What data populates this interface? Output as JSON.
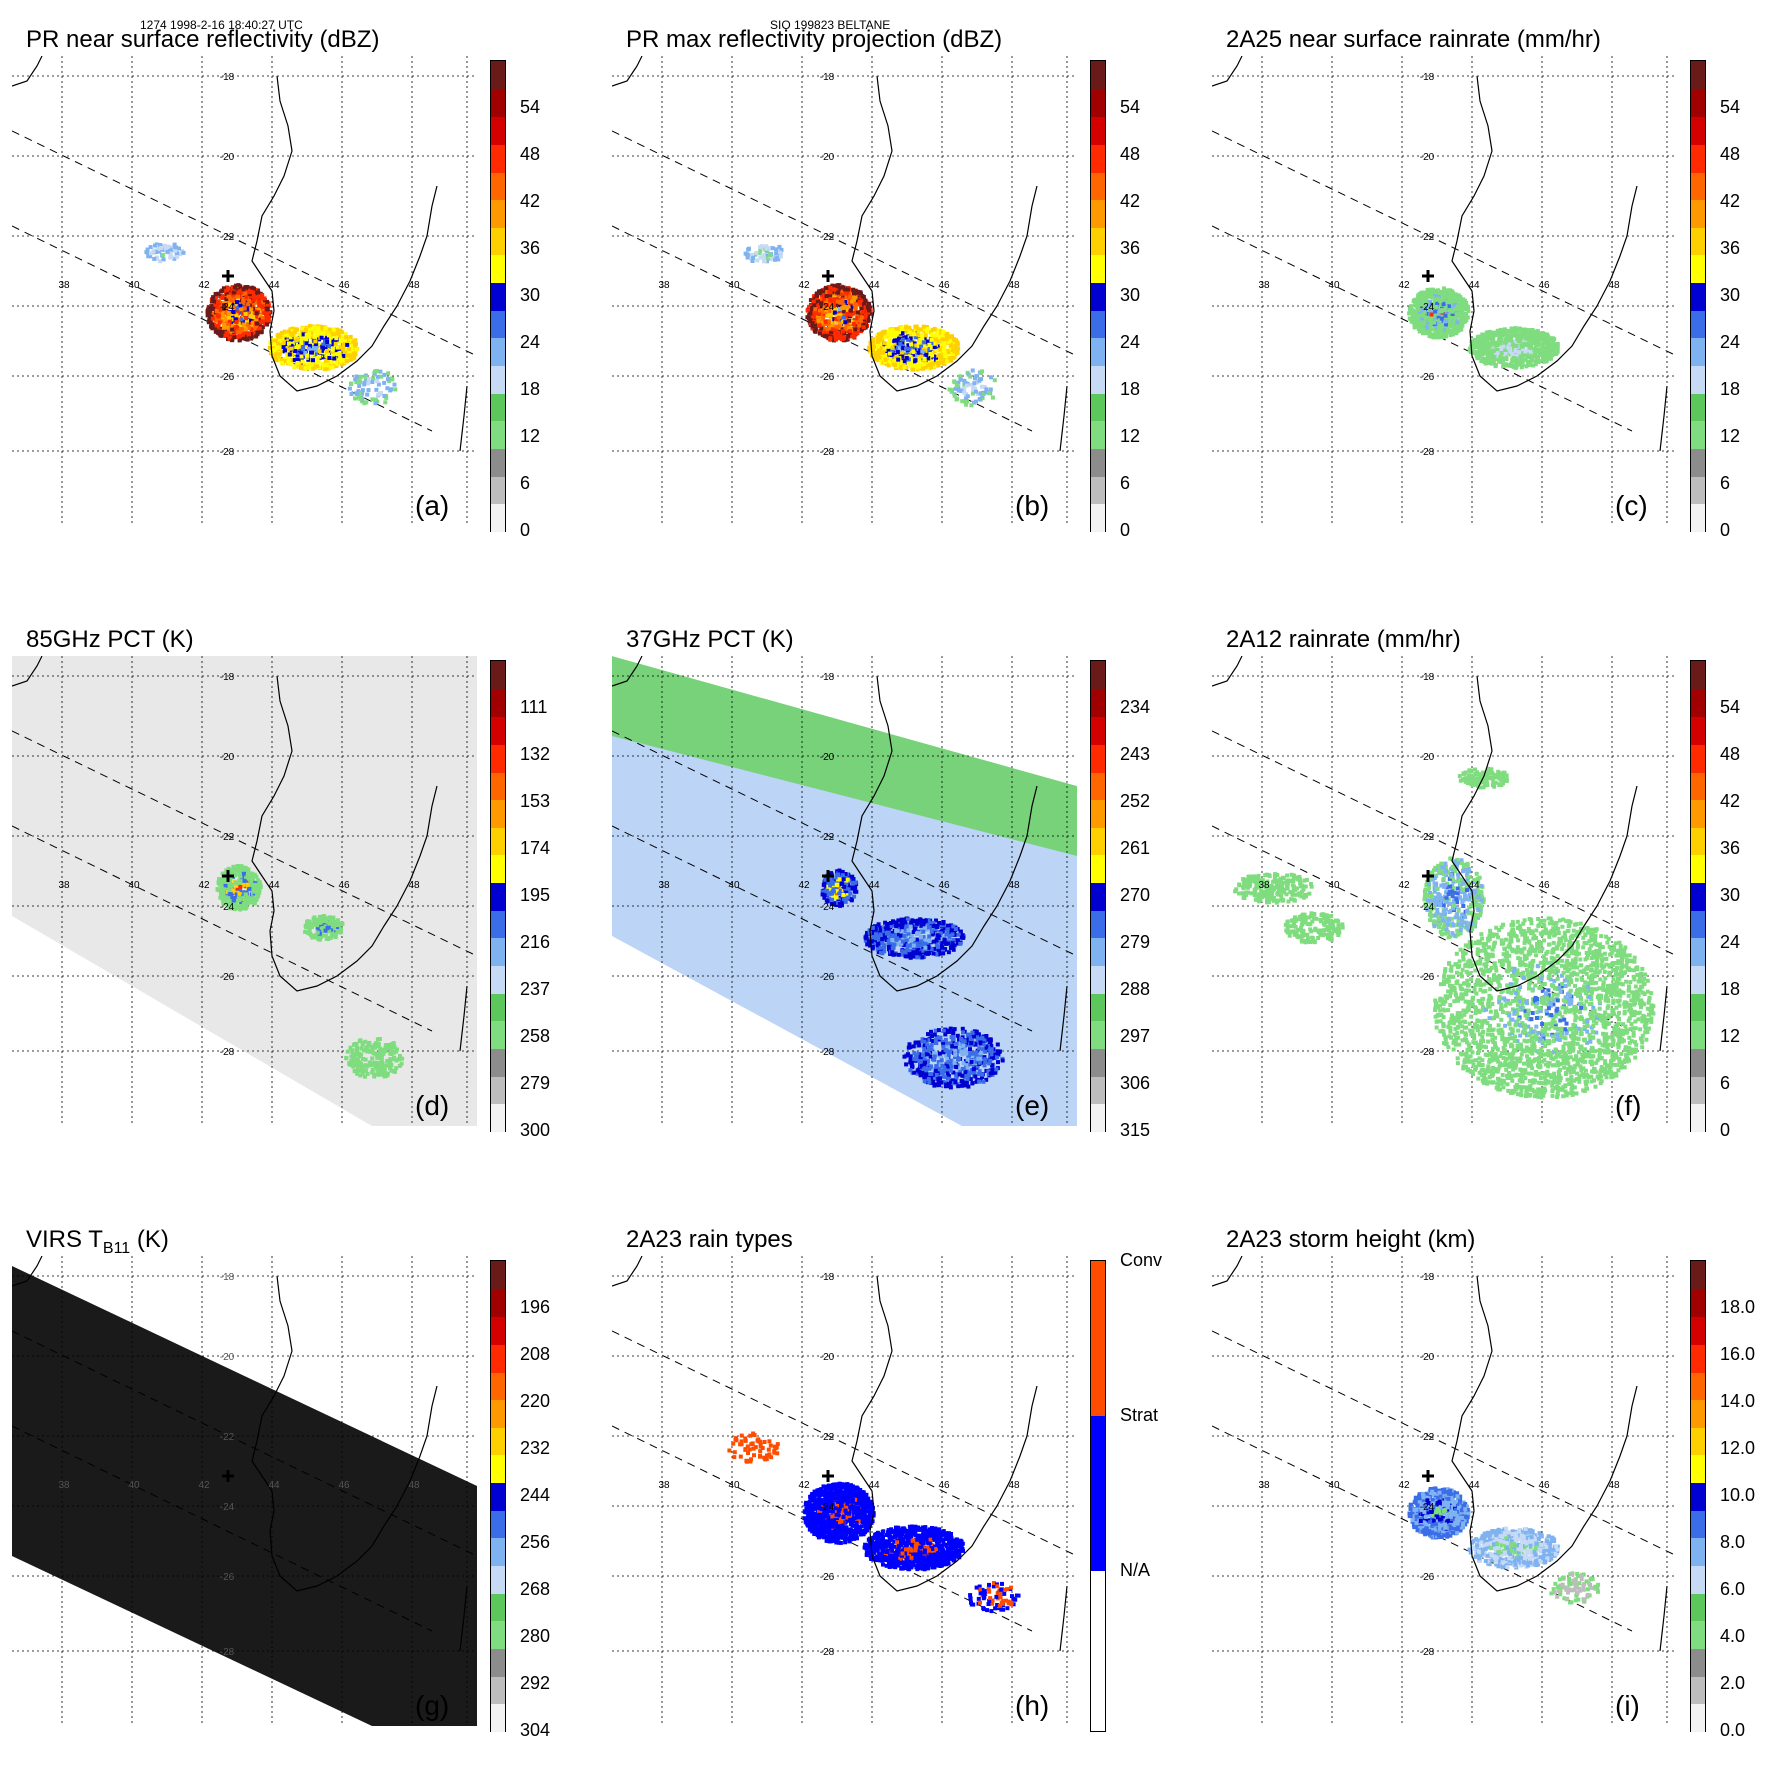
{
  "header": {
    "left": "1274 1998-2-16 18:40:27 UTC",
    "center": "SIO 199823 BELTANE"
  },
  "grid": {
    "lon_labels": [
      "38",
      "40",
      "42",
      "44",
      "46",
      "48"
    ],
    "lat_labels": [
      "-18",
      "-20",
      "-22",
      "-24",
      "-26",
      "-28"
    ]
  },
  "panels": [
    {
      "id": "a",
      "title": "PR near surface reflectivity (dBZ)",
      "label": "(a)",
      "ticks": [
        "54",
        "48",
        "42",
        "36",
        "30",
        "24",
        "18",
        "12",
        "6",
        "0"
      ],
      "bg": "white",
      "field": "swath-refl"
    },
    {
      "id": "b",
      "title": "PR max reflectivity projection (dBZ)",
      "label": "(b)",
      "ticks": [
        "54",
        "48",
        "42",
        "36",
        "30",
        "24",
        "18",
        "12",
        "6",
        "0"
      ],
      "bg": "white",
      "field": "swath-maxrefl"
    },
    {
      "id": "c",
      "title": "2A25 near surface rainrate (mm/hr)",
      "label": "(c)",
      "ticks": [
        "54",
        "48",
        "42",
        "36",
        "30",
        "24",
        "18",
        "12",
        "6",
        "0"
      ],
      "bg": "white",
      "field": "swath-rain"
    },
    {
      "id": "d",
      "title": "85GHz PCT (K)",
      "label": "(d)",
      "ticks": [
        "111",
        "132",
        "153",
        "174",
        "195",
        "216",
        "237",
        "258",
        "279",
        "300"
      ],
      "bg": "gray",
      "field": "tmi-85"
    },
    {
      "id": "e",
      "title": "37GHz PCT (K)",
      "label": "(e)",
      "ticks": [
        "234",
        "243",
        "252",
        "261",
        "270",
        "279",
        "288",
        "297",
        "306",
        "315"
      ],
      "bg": "green",
      "field": "tmi-37"
    },
    {
      "id": "f",
      "title": "2A12 rainrate (mm/hr)",
      "label": "(f)",
      "ticks": [
        "54",
        "48",
        "42",
        "36",
        "30",
        "24",
        "18",
        "12",
        "6",
        "0"
      ],
      "bg": "white",
      "field": "tmi-rain"
    },
    {
      "id": "g",
      "title": "VIRS T",
      "title_sub": "B11",
      "title_after": " (K)",
      "label": "(g)",
      "ticks": [
        "196",
        "208",
        "220",
        "232",
        "244",
        "256",
        "268",
        "280",
        "292",
        "304"
      ],
      "bg": "black",
      "field": "virs"
    },
    {
      "id": "h",
      "title": "2A23 rain types",
      "label": "(h)",
      "ticks": [
        "Conv",
        "Strat",
        "N/A"
      ],
      "bg": "white",
      "field": "raintype"
    },
    {
      "id": "i",
      "title": "2A23 storm height (km)",
      "label": "(i)",
      "ticks": [
        "18.0",
        "16.0",
        "14.0",
        "12.0",
        "10.0",
        "8.0",
        "6.0",
        "4.0",
        "2.0",
        "0.0"
      ],
      "bg": "white",
      "field": "stormheight"
    }
  ],
  "colors": {
    "scale": [
      "#f2f2f2",
      "#bdbdbd",
      "#8c8c8c",
      "#7fdc7f",
      "#5cc85c",
      "#c6d9f5",
      "#7fb2f0",
      "#3b6de8",
      "#0000d0",
      "#ffff00",
      "#ffd000",
      "#ff9900",
      "#ff6600",
      "#ff2a00",
      "#d40000",
      "#a00000",
      "#6b1a1a"
    ],
    "green_field": "#78d27a",
    "light_blue_field": "#bcd4f5",
    "virs_black": "#1a1a1a",
    "conv": "#ff4d00",
    "strat": "#0000ff",
    "na": "#ffffff"
  }
}
